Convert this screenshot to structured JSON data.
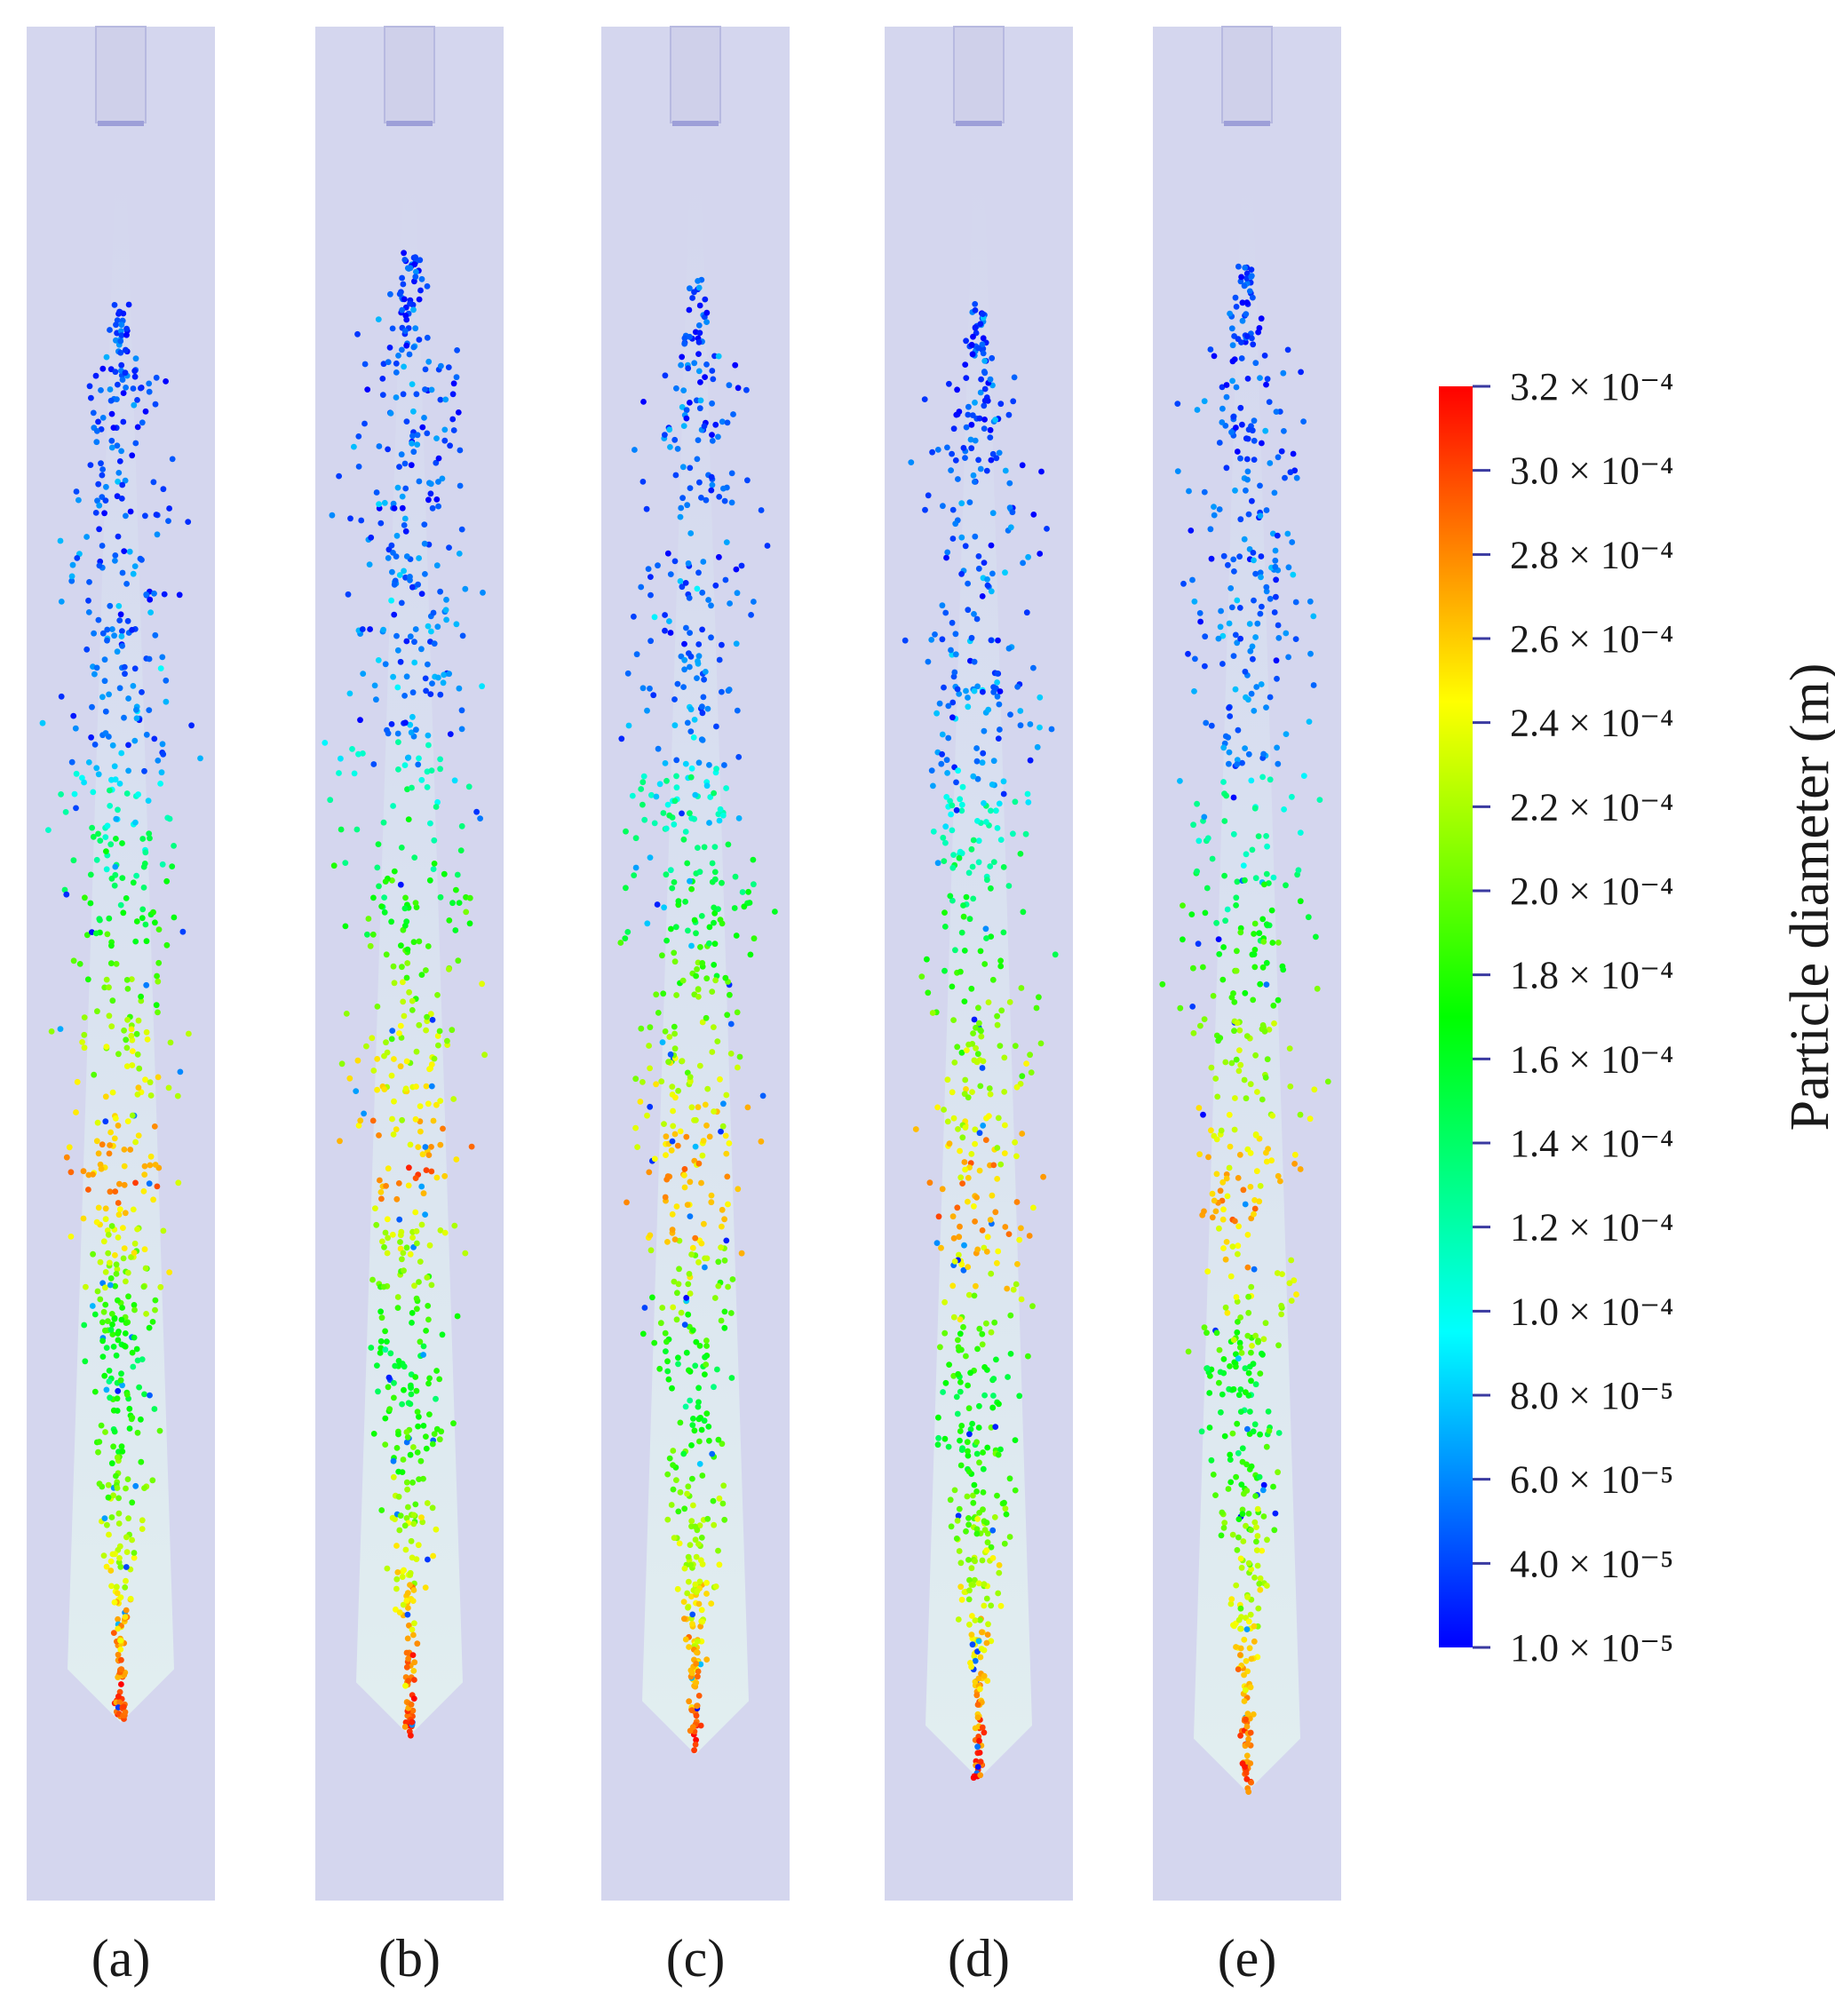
{
  "figure": {
    "panels": [
      {
        "label": "(a)",
        "spray_top_frac": 0.148,
        "bulge_frac": 0.58,
        "tip_frac": 0.905
      },
      {
        "label": "(b)",
        "spray_top_frac": 0.118,
        "bulge_frac": 0.6,
        "tip_frac": 0.912
      },
      {
        "label": "(c)",
        "spray_top_frac": 0.135,
        "bulge_frac": 0.6,
        "tip_frac": 0.922
      },
      {
        "label": "(d)",
        "spray_top_frac": 0.148,
        "bulge_frac": 0.62,
        "tip_frac": 0.935
      },
      {
        "label": "(e)",
        "spray_top_frac": 0.128,
        "bulge_frac": 0.64,
        "tip_frac": 0.942
      }
    ],
    "colorbar": {
      "title": "Particle diameter  (m)",
      "min": 1e-05,
      "max": 0.00032,
      "tick_labels": [
        {
          "text": "3.2 × 10⁻⁴",
          "value": 0.00032
        },
        {
          "text": "3.0 × 10⁻⁴",
          "value": 0.0003
        },
        {
          "text": "2.8 × 10⁻⁴",
          "value": 0.00028
        },
        {
          "text": "2.6 × 10⁻⁴",
          "value": 0.00026
        },
        {
          "text": "2.4 × 10⁻⁴",
          "value": 0.00024
        },
        {
          "text": "2.2 × 10⁻⁴",
          "value": 0.00022
        },
        {
          "text": "2.0 × 10⁻⁴",
          "value": 0.0002
        },
        {
          "text": "1.8 × 10⁻⁴",
          "value": 0.00018
        },
        {
          "text": "1.6 × 10⁻⁴",
          "value": 0.00016
        },
        {
          "text": "1.4 × 10⁻⁴",
          "value": 0.00014
        },
        {
          "text": "1.2 × 10⁻⁴",
          "value": 0.00012
        },
        {
          "text": "1.0 × 10⁻⁴",
          "value": 0.0001
        },
        {
          "text": "8.0 × 10⁻⁵",
          "value": 8e-05
        },
        {
          "text": "6.0 × 10⁻⁵",
          "value": 6e-05
        },
        {
          "text": "4.0 × 10⁻⁵",
          "value": 4e-05
        },
        {
          "text": "1.0 × 10⁻⁵",
          "value": 1e-05
        }
      ],
      "colors": [
        "#0000ff",
        "#0080ff",
        "#00ffff",
        "#00ff80",
        "#00ff00",
        "#80ff00",
        "#ffff00",
        "#ff8000",
        "#ff0000"
      ]
    },
    "column_color": "#d4d6ee",
    "core_color": "#eef2e4"
  }
}
